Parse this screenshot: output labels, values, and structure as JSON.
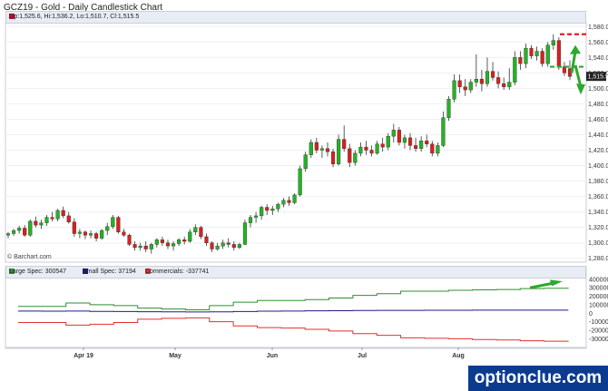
{
  "title": "GCZ19 - Gold - Daily Candlestick Chart",
  "ohlc_text": "Op:1,525.6, Hi:1,536.2, Lo:1,510.7, Cl:1,515.5",
  "brand": "© Barchart.com",
  "watermark": "optionclue.com",
  "last_price_label": "1,515.5",
  "colors": {
    "up": "#22b422",
    "down": "#d81f1f",
    "large_spec": "#2f8f2f",
    "small_spec": "#1c1c8a",
    "commercials": "#e03030",
    "arrow": "#2ea82e",
    "dash": "#e02020"
  },
  "price_axis": {
    "ticks": [
      "1,580.0",
      "1,560.0",
      "1,540.0",
      "1,520.0",
      "1,500.0",
      "1,480.0",
      "1,460.0",
      "1,440.0",
      "1,420.0",
      "1,400.0",
      "1,380.0",
      "1,360.0",
      "1,340.0",
      "1,320.0",
      "1,300.0",
      "1,280.0"
    ]
  },
  "cot_axis": {
    "ticks": [
      "400000",
      "300000",
      "200000",
      "100000",
      "0",
      "-100000",
      "-200000",
      "-300000"
    ]
  },
  "months": [
    "Apr 19",
    "May",
    "Jun",
    "Jul",
    "Aug"
  ],
  "legend": [
    {
      "label": "Large Spec: 300547",
      "color": "#2f8f2f"
    },
    {
      "label": "Small Spec: 37194",
      "color": "#1c1c8a"
    },
    {
      "label": "Commercials: -337741",
      "color": "#e03030"
    }
  ],
  "chart_data": {
    "type": "candlestick",
    "symbol": "GCZ19",
    "ylim": [
      1275,
      1585
    ],
    "candles": [
      [
        1310,
        1314,
        1306,
        1312
      ],
      [
        1312,
        1318,
        1309,
        1316
      ],
      [
        1316,
        1322,
        1312,
        1319
      ],
      [
        1319,
        1323,
        1308,
        1310
      ],
      [
        1310,
        1330,
        1308,
        1328
      ],
      [
        1328,
        1334,
        1320,
        1323
      ],
      [
        1323,
        1330,
        1318,
        1326
      ],
      [
        1326,
        1336,
        1322,
        1333
      ],
      [
        1333,
        1340,
        1328,
        1331
      ],
      [
        1331,
        1344,
        1328,
        1342
      ],
      [
        1342,
        1347,
        1332,
        1335
      ],
      [
        1335,
        1340,
        1325,
        1327
      ],
      [
        1327,
        1332,
        1308,
        1312
      ],
      [
        1312,
        1318,
        1306,
        1314
      ],
      [
        1314,
        1316,
        1305,
        1310
      ],
      [
        1310,
        1316,
        1306,
        1312
      ],
      [
        1312,
        1314,
        1302,
        1306
      ],
      [
        1306,
        1318,
        1304,
        1316
      ],
      [
        1316,
        1326,
        1310,
        1321
      ],
      [
        1321,
        1336,
        1318,
        1333
      ],
      [
        1333,
        1335,
        1312,
        1314
      ],
      [
        1314,
        1318,
        1308,
        1310
      ],
      [
        1310,
        1312,
        1296,
        1298
      ],
      [
        1298,
        1302,
        1290,
        1294
      ],
      [
        1294,
        1300,
        1290,
        1296
      ],
      [
        1296,
        1302,
        1288,
        1292
      ],
      [
        1292,
        1300,
        1286,
        1298
      ],
      [
        1298,
        1306,
        1294,
        1304
      ],
      [
        1304,
        1308,
        1296,
        1300
      ],
      [
        1300,
        1304,
        1292,
        1296
      ],
      [
        1296,
        1302,
        1290,
        1299
      ],
      [
        1299,
        1306,
        1296,
        1304
      ],
      [
        1304,
        1308,
        1298,
        1302
      ],
      [
        1302,
        1318,
        1300,
        1314
      ],
      [
        1314,
        1324,
        1310,
        1320
      ],
      [
        1320,
        1322,
        1305,
        1308
      ],
      [
        1308,
        1312,
        1296,
        1300
      ],
      [
        1300,
        1302,
        1288,
        1292
      ],
      [
        1292,
        1300,
        1290,
        1296
      ],
      [
        1296,
        1304,
        1292,
        1300
      ],
      [
        1300,
        1306,
        1294,
        1298
      ],
      [
        1298,
        1302,
        1290,
        1294
      ],
      [
        1294,
        1300,
        1292,
        1298
      ],
      [
        1298,
        1330,
        1297,
        1326
      ],
      [
        1326,
        1336,
        1320,
        1333
      ],
      [
        1333,
        1340,
        1326,
        1335
      ],
      [
        1335,
        1348,
        1330,
        1346
      ],
      [
        1346,
        1350,
        1336,
        1342
      ],
      [
        1342,
        1348,
        1336,
        1344
      ],
      [
        1344,
        1352,
        1340,
        1350
      ],
      [
        1350,
        1358,
        1346,
        1355
      ],
      [
        1355,
        1360,
        1348,
        1352
      ],
      [
        1352,
        1364,
        1350,
        1362
      ],
      [
        1362,
        1400,
        1360,
        1396
      ],
      [
        1396,
        1418,
        1392,
        1414
      ],
      [
        1414,
        1434,
        1410,
        1430
      ],
      [
        1430,
        1436,
        1416,
        1420
      ],
      [
        1420,
        1426,
        1410,
        1422
      ],
      [
        1422,
        1430,
        1412,
        1418
      ],
      [
        1418,
        1422,
        1398,
        1402
      ],
      [
        1402,
        1440,
        1400,
        1434
      ],
      [
        1434,
        1452,
        1418,
        1422
      ],
      [
        1422,
        1428,
        1398,
        1404
      ],
      [
        1404,
        1420,
        1400,
        1416
      ],
      [
        1416,
        1430,
        1412,
        1424
      ],
      [
        1424,
        1432,
        1414,
        1420
      ],
      [
        1420,
        1426,
        1412,
        1416
      ],
      [
        1416,
        1432,
        1414,
        1428
      ],
      [
        1428,
        1436,
        1418,
        1424
      ],
      [
        1424,
        1442,
        1420,
        1438
      ],
      [
        1438,
        1454,
        1430,
        1446
      ],
      [
        1446,
        1450,
        1426,
        1430
      ],
      [
        1430,
        1440,
        1422,
        1436
      ],
      [
        1436,
        1442,
        1420,
        1426
      ],
      [
        1426,
        1436,
        1418,
        1422
      ],
      [
        1422,
        1438,
        1418,
        1432
      ],
      [
        1432,
        1440,
        1424,
        1428
      ],
      [
        1428,
        1432,
        1412,
        1416
      ],
      [
        1416,
        1430,
        1412,
        1426
      ],
      [
        1426,
        1470,
        1424,
        1462
      ],
      [
        1462,
        1490,
        1458,
        1486
      ],
      [
        1486,
        1518,
        1482,
        1510
      ],
      [
        1510,
        1518,
        1494,
        1502
      ],
      [
        1502,
        1512,
        1490,
        1498
      ],
      [
        1498,
        1512,
        1494,
        1508
      ],
      [
        1508,
        1544,
        1502,
        1512
      ],
      [
        1512,
        1524,
        1496,
        1506
      ],
      [
        1506,
        1540,
        1502,
        1522
      ],
      [
        1522,
        1534,
        1510,
        1514
      ],
      [
        1514,
        1522,
        1500,
        1506
      ],
      [
        1506,
        1514,
        1498,
        1502
      ],
      [
        1502,
        1526,
        1498,
        1508
      ],
      [
        1508,
        1548,
        1504,
        1540
      ],
      [
        1540,
        1548,
        1524,
        1532
      ],
      [
        1532,
        1558,
        1526,
        1552
      ],
      [
        1552,
        1556,
        1538,
        1542
      ],
      [
        1542,
        1554,
        1536,
        1548
      ],
      [
        1548,
        1552,
        1528,
        1532
      ],
      [
        1532,
        1560,
        1528,
        1556
      ],
      [
        1556,
        1570,
        1550,
        1562
      ],
      [
        1562,
        1566,
        1524,
        1528
      ],
      [
        1528,
        1534,
        1516,
        1520
      ],
      [
        1525.6,
        1536.2,
        1510.7,
        1515.5
      ]
    ],
    "cot_ylim": [
      -350000,
      420000
    ],
    "series": [
      {
        "name": "Large Spec",
        "values": [
          80000,
          80000,
          120000,
          100000,
          90000,
          60000,
          50000,
          40000,
          90000,
          130000,
          150000,
          150000,
          160000,
          180000,
          210000,
          230000,
          260000,
          260000,
          270000,
          275000,
          280000,
          290000,
          295000,
          300547
        ]
      },
      {
        "name": "Small Spec",
        "values": [
          25000,
          24000,
          26000,
          22000,
          20000,
          18000,
          16000,
          15000,
          16000,
          20000,
          24000,
          26000,
          28000,
          30000,
          32000,
          33000,
          34000,
          35000,
          35000,
          36000,
          36000,
          37000,
          37000,
          37194
        ]
      },
      {
        "name": "Commercials",
        "values": [
          -110000,
          -110000,
          -140000,
          -130000,
          -110000,
          -70000,
          -60000,
          -55000,
          -100000,
          -150000,
          -170000,
          -175000,
          -190000,
          -210000,
          -240000,
          -260000,
          -290000,
          -295000,
          -300000,
          -310000,
          -315000,
          -325000,
          -330000,
          -337741
        ]
      }
    ]
  }
}
